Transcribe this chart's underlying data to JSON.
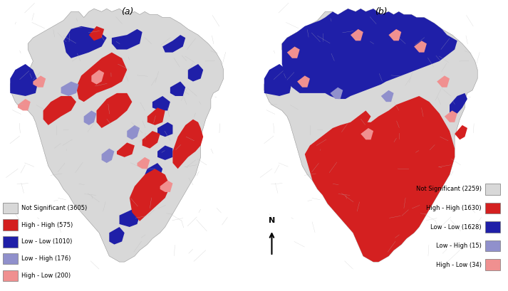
{
  "title_a": "(a)",
  "title_b": "(b)",
  "legend_a": {
    "items": [
      {
        "label": "Not Significant (3605)",
        "color": "#d8d8d8",
        "edgecolor": "#888888"
      },
      {
        "label": "High - High (575)",
        "color": "#d42020",
        "edgecolor": "#888888"
      },
      {
        "label": "Low - Low (1010)",
        "color": "#1f1fa8",
        "edgecolor": "#888888"
      },
      {
        "label": "Low - High (176)",
        "color": "#9090cc",
        "edgecolor": "#888888"
      },
      {
        "label": "High - Low (200)",
        "color": "#f09090",
        "edgecolor": "#888888"
      }
    ]
  },
  "legend_b": {
    "items": [
      {
        "label": "Not Significant (2259)",
        "color": "#d8d8d8",
        "edgecolor": "#888888"
      },
      {
        "label": "High - High (1630)",
        "color": "#d42020",
        "edgecolor": "#888888"
      },
      {
        "label": "Low - Low (1628)",
        "color": "#1f1fa8",
        "edgecolor": "#888888"
      },
      {
        "label": "Low - High (15)",
        "color": "#9090cc",
        "edgecolor": "#888888"
      },
      {
        "label": "High - Low (34)",
        "color": "#f09090",
        "edgecolor": "#888888"
      }
    ]
  },
  "background_color": "#ffffff",
  "fig_width": 7.13,
  "fig_height": 4.09,
  "dpi": 100
}
